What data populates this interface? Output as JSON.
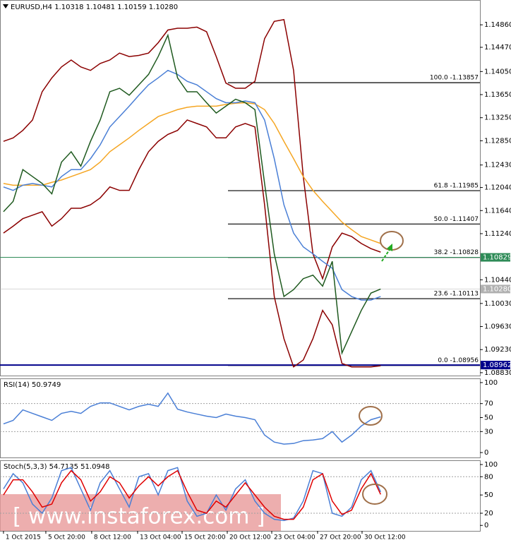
{
  "chart_data": [
    {
      "type": "line",
      "title": "EURUSD,H4 1.10318 1.10481 1.10159 1.10280",
      "x": [
        0,
        1,
        2,
        3,
        4,
        5,
        6,
        7,
        8,
        9,
        10,
        11,
        12,
        13,
        14,
        15,
        16,
        17,
        18,
        19,
        20,
        21,
        22,
        23,
        24,
        25,
        26,
        27,
        28,
        29,
        30,
        31,
        32,
        33,
        34,
        35,
        36,
        37,
        38,
        39
      ],
      "xlim": [
        -0.36,
        49.27
      ],
      "xticks": [
        {
          "value": 0,
          "label": "1 Oct 2015"
        },
        {
          "value": 4.38,
          "label": "5 Oct 20:00"
        },
        {
          "value": 9.12,
          "label": "8 Oct 12:00"
        },
        {
          "value": 13.87,
          "label": "13 Oct 04:00"
        },
        {
          "value": 18.47,
          "label": "15 Oct 20:00"
        },
        {
          "value": 23.14,
          "label": "20 Oct 12:00"
        },
        {
          "value": 27.74,
          "label": "23 Oct 04:00"
        },
        {
          "value": 32.48,
          "label": "27 Oct 20:00"
        },
        {
          "value": 37.08,
          "label": "30 Oct 12:00"
        }
      ],
      "ylim": [
        1.0878,
        1.1529
      ],
      "yticks": [
        {
          "value": 1.1486,
          "label": "1.14860"
        },
        {
          "value": 1.1447,
          "label": "1.14470"
        },
        {
          "value": 1.1405,
          "label": "1.14050"
        },
        {
          "value": 1.1365,
          "label": "1.13650"
        },
        {
          "value": 1.1325,
          "label": "1.13250"
        },
        {
          "value": 1.1285,
          "label": "1.12850"
        },
        {
          "value": 1.1243,
          "label": "1.12430"
        },
        {
          "value": 1.1204,
          "label": "1.12040"
        },
        {
          "value": 1.1164,
          "label": "1.11640"
        },
        {
          "value": 1.1124,
          "label": "1.11240"
        },
        {
          "value": 1.1044,
          "label": "1.10440"
        },
        {
          "value": 1.1003,
          "label": "1.10030"
        },
        {
          "value": 1.0963,
          "label": "1.09630"
        },
        {
          "value": 1.0923,
          "label": "1.09230"
        },
        {
          "value": 1.0883,
          "label": "1.08830"
        }
      ],
      "series": [
        {
          "color": "#8b0000",
          "values": [
            1.1284,
            1.129,
            1.1303,
            1.1321,
            1.137,
            1.1394,
            1.1413,
            1.1425,
            1.1413,
            1.1407,
            1.1419,
            1.1425,
            1.1437,
            1.1431,
            1.1433,
            1.1437,
            1.1455,
            1.1477,
            1.148,
            1.148,
            1.1482,
            1.1474,
            1.1431,
            1.1385,
            1.1376,
            1.1376,
            1.1388,
            1.1462,
            1.1492,
            1.1495,
            1.1407,
            1.1223,
            1.1089,
            1.1046,
            1.1101,
            1.1125,
            1.1119,
            1.1107,
            1.1098,
            1.1092
          ]
        },
        {
          "color": "#8b0000",
          "values": [
            1.1125,
            1.1137,
            1.115,
            1.1156,
            1.1162,
            1.1137,
            1.115,
            1.1168,
            1.1168,
            1.1174,
            1.1186,
            1.1205,
            1.1199,
            1.1199,
            1.1235,
            1.1266,
            1.1284,
            1.1296,
            1.1303,
            1.1321,
            1.1315,
            1.1309,
            1.129,
            1.129,
            1.1309,
            1.1315,
            1.1309,
            1.1174,
            1.1015,
            1.0942,
            1.0893,
            1.0905,
            1.0942,
            1.0991,
            1.0966,
            1.0899,
            1.0893,
            1.0893,
            1.0893,
            1.0895
          ]
        },
        {
          "color": "#f5a623",
          "values": [
            1.1211,
            1.1208,
            1.1208,
            1.1208,
            1.1208,
            1.1213,
            1.1217,
            1.1223,
            1.1229,
            1.1235,
            1.1248,
            1.1266,
            1.1278,
            1.129,
            1.1303,
            1.1315,
            1.1327,
            1.1333,
            1.1339,
            1.1343,
            1.1345,
            1.1345,
            1.1345,
            1.1348,
            1.135,
            1.1351,
            1.1349,
            1.1339,
            1.1315,
            1.1284,
            1.1254,
            1.1223,
            1.1199,
            1.118,
            1.1162,
            1.1144,
            1.1131,
            1.1119,
            1.1113,
            1.1107
          ]
        },
        {
          "color": "#4a7fd6",
          "values": [
            1.1205,
            1.1199,
            1.1208,
            1.1211,
            1.1208,
            1.1205,
            1.1223,
            1.1235,
            1.1235,
            1.1254,
            1.1278,
            1.1309,
            1.1327,
            1.1345,
            1.1364,
            1.1382,
            1.1394,
            1.1407,
            1.14,
            1.1388,
            1.1382,
            1.137,
            1.1358,
            1.1351,
            1.1351,
            1.1354,
            1.1351,
            1.1321,
            1.1254,
            1.1174,
            1.1125,
            1.1101,
            1.1089,
            1.1076,
            1.1064,
            1.1027,
            1.1015,
            1.1009,
            1.1009,
            1.1015
          ]
        },
        {
          "color": "#1f5a1f",
          "values": [
            1.1162,
            1.118,
            1.1235,
            1.1223,
            1.1211,
            1.1193,
            1.1248,
            1.1266,
            1.1241,
            1.1284,
            1.1321,
            1.137,
            1.1376,
            1.1364,
            1.1382,
            1.14,
            1.1431,
            1.1468,
            1.1394,
            1.137,
            1.137,
            1.1351,
            1.1333,
            1.1345,
            1.1357,
            1.1351,
            1.1339,
            1.1211,
            1.1089,
            1.1015,
            1.1027,
            1.1046,
            1.1052,
            1.1033,
            1.1076,
            1.0917,
            1.0954,
            1.0991,
            1.1021,
            1.1028
          ]
        }
      ],
      "hlines": [
        {
          "value": 1.10829,
          "label": "1.10829",
          "color": "#2e8b57"
        },
        {
          "value": 1.08962,
          "label": "1.08962",
          "color": "#00008b"
        },
        {
          "value": 1.1028,
          "label": "1.10280",
          "color": "#b0b0b0"
        }
      ],
      "fib_levels": [
        {
          "value": 1.13857,
          "label": "100.0 -1.13857"
        },
        {
          "value": 1.11985,
          "label": "61.8 -1.11985"
        },
        {
          "value": 1.11407,
          "label": "50.0 -1.11407"
        },
        {
          "value": 1.10828,
          "label": "38.2 -1.10828"
        },
        {
          "value": 1.10113,
          "label": "23.6 -1.10113"
        },
        {
          "value": 1.08956,
          "label": "0.0 -1.08956"
        }
      ]
    },
    {
      "type": "line",
      "title": "RSI(14) 50.9749",
      "x": [
        0,
        1,
        2,
        3,
        4,
        5,
        6,
        7,
        8,
        9,
        10,
        11,
        12,
        13,
        14,
        15,
        16,
        17,
        18,
        19,
        20,
        21,
        22,
        23,
        24,
        25,
        26,
        27,
        28,
        29,
        30,
        31,
        32,
        33,
        34,
        35,
        36,
        37,
        38,
        39
      ],
      "xlim": [
        -0.36,
        49.27
      ],
      "ylim": [
        -7,
        106
      ],
      "yticks": [
        100,
        70,
        50,
        30,
        0
      ],
      "levels": [
        70,
        30
      ],
      "series": [
        {
          "color": "#4a7fd6",
          "values": [
            41,
            46,
            61,
            56,
            51,
            46,
            56,
            59,
            56,
            66,
            71,
            71,
            66,
            61,
            66,
            69,
            66,
            85,
            62,
            58,
            55,
            52,
            50,
            55,
            52,
            50,
            47,
            25,
            15,
            12,
            13,
            17,
            18,
            20,
            30,
            15,
            25,
            38,
            47,
            51
          ]
        }
      ]
    },
    {
      "type": "line",
      "title": "Stoch(5,3,3) 54.7135 51.0948",
      "x": [
        0,
        1,
        2,
        3,
        4,
        5,
        6,
        7,
        8,
        9,
        10,
        11,
        12,
        13,
        14,
        15,
        16,
        17,
        18,
        19,
        20,
        21,
        22,
        23,
        24,
        25,
        26,
        27,
        28,
        29,
        30,
        31,
        32,
        33,
        34,
        35,
        36,
        37,
        38,
        39
      ],
      "xlim": [
        -0.36,
        49.27
      ],
      "ylim": [
        -9,
        107
      ],
      "yticks": [
        100,
        80,
        50,
        20,
        0
      ],
      "levels": [
        80,
        20
      ],
      "series": [
        {
          "color": "#4a7fd6",
          "values": [
            60,
            85,
            70,
            35,
            20,
            45,
            90,
            95,
            60,
            25,
            70,
            90,
            60,
            30,
            80,
            85,
            50,
            90,
            95,
            40,
            15,
            20,
            50,
            25,
            60,
            75,
            40,
            20,
            10,
            8,
            12,
            40,
            90,
            85,
            20,
            15,
            30,
            75,
            90,
            55
          ]
        },
        {
          "color": "#e00000",
          "values": [
            50,
            75,
            75,
            55,
            30,
            35,
            70,
            90,
            75,
            40,
            55,
            80,
            70,
            45,
            65,
            80,
            65,
            80,
            90,
            55,
            25,
            20,
            40,
            30,
            50,
            70,
            50,
            30,
            15,
            10,
            10,
            30,
            75,
            85,
            40,
            18,
            25,
            60,
            85,
            51
          ]
        }
      ]
    }
  ],
  "watermark": "[ www.instaforex.com ]"
}
